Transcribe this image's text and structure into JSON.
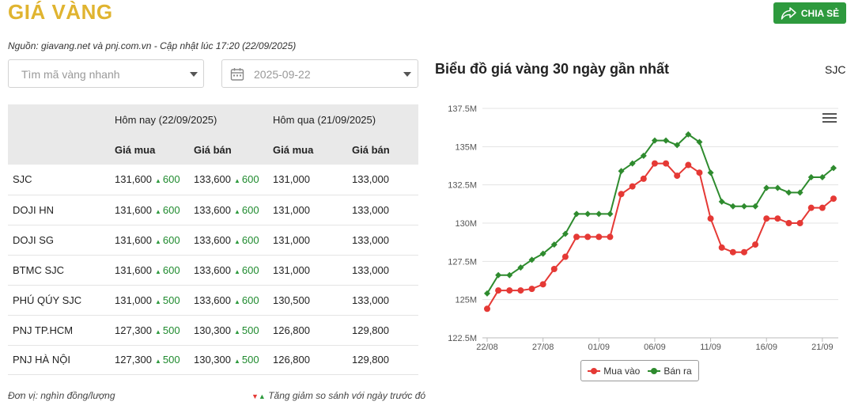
{
  "header": {
    "title": "GIÁ VÀNG",
    "share_label": "CHIA SẺ",
    "source": "Nguồn: giavang.net và pnj.com.vn - Cập nhật lúc 17:20 (22/09/2025)"
  },
  "search": {
    "placeholder": "Tìm mã vàng nhanh"
  },
  "date_picker": {
    "value": "2025-09-22"
  },
  "table": {
    "group_today": "Hôm nay (22/09/2025)",
    "group_yesterday": "Hôm qua (21/09/2025)",
    "col_buy": "Giá mua",
    "col_sell": "Giá bán",
    "rows": [
      {
        "name": "SJC",
        "buy": "131,600",
        "buy_chg": "600",
        "sell": "133,600",
        "sell_chg": "600",
        "prev_buy": "131,000",
        "prev_sell": "133,000"
      },
      {
        "name": "DOJI HN",
        "buy": "131,600",
        "buy_chg": "600",
        "sell": "133,600",
        "sell_chg": "600",
        "prev_buy": "131,000",
        "prev_sell": "133,000"
      },
      {
        "name": "DOJI SG",
        "buy": "131,600",
        "buy_chg": "600",
        "sell": "133,600",
        "sell_chg": "600",
        "prev_buy": "131,000",
        "prev_sell": "133,000"
      },
      {
        "name": "BTMC SJC",
        "buy": "131,600",
        "buy_chg": "600",
        "sell": "133,600",
        "sell_chg": "600",
        "prev_buy": "131,000",
        "prev_sell": "133,000"
      },
      {
        "name": "PHÚ QÚY SJC",
        "buy": "131,000",
        "buy_chg": "500",
        "sell": "133,600",
        "sell_chg": "600",
        "prev_buy": "130,500",
        "prev_sell": "133,000"
      },
      {
        "name": "PNJ TP.HCM",
        "buy": "127,300",
        "buy_chg": "500",
        "sell": "130,300",
        "sell_chg": "500",
        "prev_buy": "126,800",
        "prev_sell": "129,800"
      },
      {
        "name": "PNJ HÀ NỘI",
        "buy": "127,300",
        "buy_chg": "500",
        "sell": "130,300",
        "sell_chg": "500",
        "prev_buy": "126,800",
        "prev_sell": "129,800"
      }
    ]
  },
  "footer": {
    "unit": "Đơn vị: nghìn đồng/lượng",
    "change_note": "Tăng giảm so sánh với ngày trước đó"
  },
  "chart_header": {
    "title": "Biểu đồ giá vàng 30 ngày gần nhất",
    "code": "SJC"
  },
  "colors": {
    "buy": "#e53935",
    "sell": "#2e8b2e",
    "title": "#e0b430",
    "up": "#2e9a3e"
  },
  "chart_data": {
    "type": "line",
    "x": [
      "22/08",
      "23/08",
      "24/08",
      "25/08",
      "26/08",
      "27/08",
      "28/08",
      "29/08",
      "30/08",
      "31/08",
      "01/09",
      "02/09",
      "03/09",
      "04/09",
      "05/09",
      "06/09",
      "07/09",
      "08/09",
      "09/09",
      "10/09",
      "11/09",
      "12/09",
      "13/09",
      "14/09",
      "15/09",
      "16/09",
      "17/09",
      "18/09",
      "19/09",
      "20/09",
      "21/09",
      "22/09"
    ],
    "x_tick_labels": [
      "22/08",
      "27/08",
      "01/09",
      "06/09",
      "11/09",
      "16/09",
      "21/09"
    ],
    "series": [
      {
        "name": "Mua vào",
        "color": "#e53935",
        "values": [
          124400,
          125600,
          125600,
          125600,
          125700,
          126000,
          127000,
          127800,
          129100,
          129100,
          129100,
          129100,
          131900,
          132400,
          132900,
          133900,
          133900,
          133100,
          133800,
          133300,
          130300,
          128400,
          128100,
          128100,
          128600,
          130300,
          130300,
          130000,
          130000,
          131000,
          131000,
          131600
        ]
      },
      {
        "name": "Bán ra",
        "color": "#2e8b2e",
        "values": [
          125400,
          126600,
          126600,
          127100,
          127600,
          128000,
          128600,
          129300,
          130600,
          130600,
          130600,
          130600,
          133400,
          133900,
          134400,
          135400,
          135400,
          135100,
          135800,
          135300,
          133300,
          131400,
          131100,
          131100,
          131100,
          132300,
          132300,
          132000,
          132000,
          133000,
          133000,
          133600
        ]
      }
    ],
    "y_tick_labels": [
      "122.5M",
      "125M",
      "127.5M",
      "130M",
      "132.5M",
      "135M",
      "137.5M"
    ],
    "ylim": [
      122500,
      137500
    ],
    "legend_position": "bottom",
    "grid": true
  }
}
